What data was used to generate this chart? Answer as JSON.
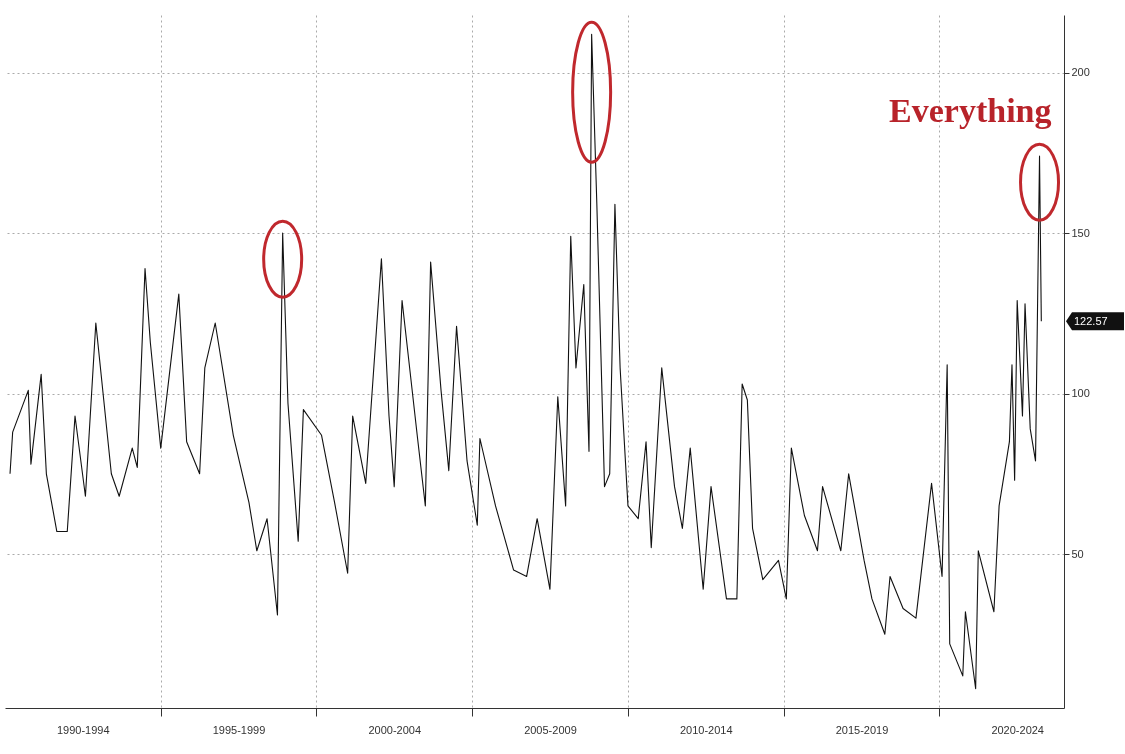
{
  "chart_data": {
    "type": "line",
    "x": [
      "1990-03",
      "1990-04",
      "1990-10",
      "1990-11",
      "1991-03",
      "1991-05",
      "1991-09",
      "1992-01",
      "1992-04",
      "1992-08",
      "1992-12",
      "1993-06",
      "1993-09",
      "1994-02",
      "1994-04",
      "1994-07",
      "1994-09",
      "1995-01",
      "1995-08",
      "1995-11",
      "1996-04",
      "1996-06",
      "1996-10",
      "1997-05",
      "1997-11",
      "1998-02",
      "1998-06",
      "1998-10",
      "1998-12",
      "1999-02",
      "1999-06",
      "1999-08",
      "2000-03",
      "2000-08",
      "2001-01",
      "2001-03",
      "2001-08",
      "2002-02",
      "2002-05",
      "2002-07",
      "2002-10",
      "2003-04",
      "2003-07",
      "2003-09",
      "2004-01",
      "2004-04",
      "2004-07",
      "2004-11",
      "2005-03",
      "2005-04",
      "2005-10",
      "2006-05",
      "2006-10",
      "2007-02",
      "2007-07",
      "2007-10",
      "2008-01",
      "2008-03",
      "2008-05",
      "2008-08",
      "2008-10",
      "2008-11",
      "2009-01",
      "2009-04",
      "2009-06",
      "2009-08",
      "2009-10",
      "2010-01",
      "2010-05",
      "2010-08",
      "2010-10",
      "2011-02",
      "2011-07",
      "2011-10",
      "2012-01",
      "2012-06",
      "2012-09",
      "2013-03",
      "2013-07",
      "2013-09",
      "2013-11",
      "2014-01",
      "2014-05",
      "2014-11",
      "2015-02",
      "2015-04",
      "2015-09",
      "2016-02",
      "2016-04",
      "2016-11",
      "2017-02",
      "2017-08",
      "2017-11",
      "2018-04",
      "2018-06",
      "2018-11",
      "2019-04",
      "2019-10",
      "2020-02",
      "2020-04",
      "2020-05",
      "2020-10",
      "2020-11",
      "2021-03",
      "2021-04",
      "2021-10",
      "2021-12",
      "2022-04",
      "2022-05",
      "2022-06",
      "2022-07",
      "2022-09",
      "2022-10",
      "2022-12",
      "2023-02",
      "2023-03-20",
      "2023-04-10"
    ],
    "series": [
      {
        "color": "#111111",
        "values": [
          75,
          88,
          101,
          78,
          106,
          75,
          57,
          57,
          93,
          68,
          122,
          75,
          68,
          83,
          77,
          139,
          116,
          83,
          131,
          85,
          75,
          108,
          122,
          87,
          66,
          51,
          61,
          31,
          150,
          97,
          54,
          95,
          87,
          66,
          44,
          93,
          72,
          142,
          93,
          71,
          129,
          86,
          65,
          141,
          101,
          76,
          121,
          79,
          59,
          86,
          65,
          45,
          43,
          61,
          39,
          99,
          65,
          149,
          108,
          134,
          82,
          212,
          159,
          71,
          75,
          159,
          108,
          65,
          61,
          85,
          52,
          108,
          71,
          58,
          83,
          39,
          71,
          36,
          36,
          103,
          98,
          58,
          42,
          48,
          36,
          83,
          62,
          51,
          71,
          51,
          75,
          48,
          36,
          25,
          43,
          33,
          30,
          72,
          43,
          109,
          22,
          12,
          32,
          8,
          51,
          32,
          65,
          85,
          109,
          73,
          129,
          93,
          128,
          89,
          79,
          174,
          122.57
        ]
      }
    ],
    "xlim": [
      "1990-01",
      "2024-01"
    ],
    "xticks": [
      {
        "value": "1992-07",
        "label": "1990-1994"
      },
      {
        "value": "1995-01",
        "label": null
      },
      {
        "value": "1997-07",
        "label": "1995-1999"
      },
      {
        "value": "2000-01",
        "label": null
      },
      {
        "value": "2002-07",
        "label": "2000-2004"
      },
      {
        "value": "2005-01",
        "label": null
      },
      {
        "value": "2007-07",
        "label": "2005-2009"
      },
      {
        "value": "2010-01",
        "label": null
      },
      {
        "value": "2012-07",
        "label": "2010-2014"
      },
      {
        "value": "2015-01",
        "label": null
      },
      {
        "value": "2017-07",
        "label": "2015-2019"
      },
      {
        "value": "2020-01",
        "label": null
      },
      {
        "value": "2022-07",
        "label": "2020-2024"
      }
    ],
    "ylim": [
      2,
      218
    ],
    "yticks": [
      50,
      100,
      150,
      200
    ],
    "grid": true,
    "annotations": [
      {
        "text": "Everything",
        "x": "2023-03-20",
        "y": 174
      },
      "122.57"
    ]
  }
}
